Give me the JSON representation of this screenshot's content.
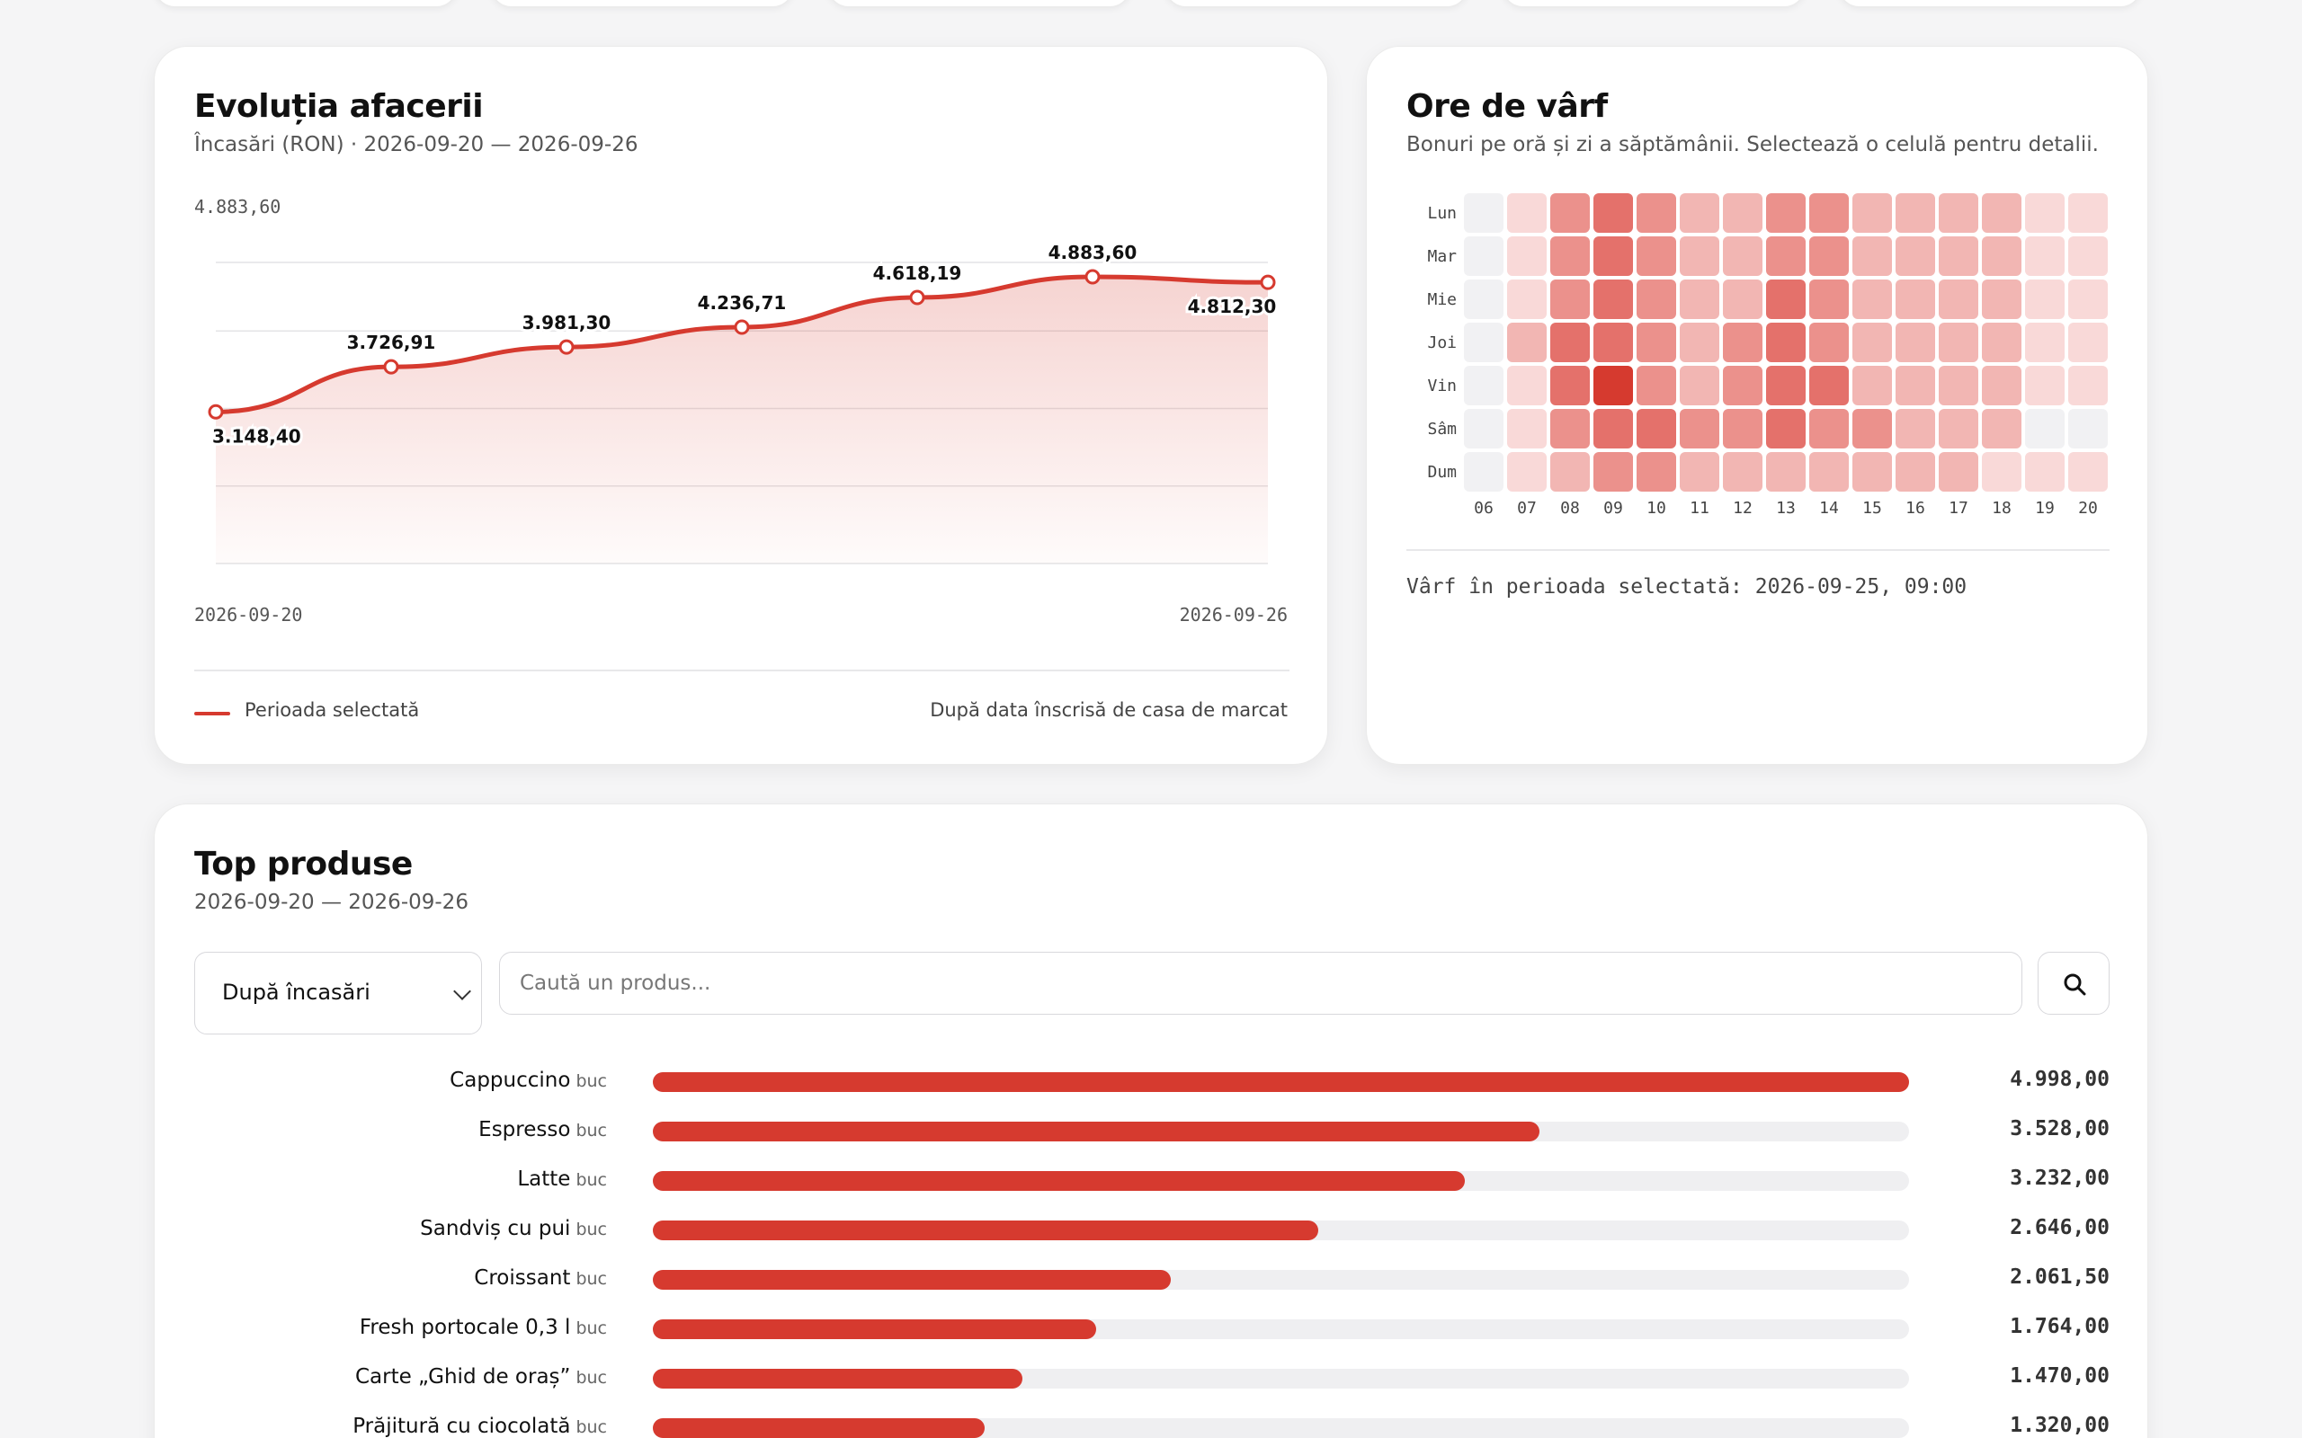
{
  "evolution": {
    "title": "Evoluția afacerii",
    "subtitle": "Încasări (RON) · 2026-09-20 — 2026-09-26",
    "legend_label": "Perioada selectată",
    "legend_note": "După data înscrisă de casa de marcat",
    "accent_color": "#d63a2f"
  },
  "chart_data": {
    "type": "area",
    "x": [
      "2026-09-20",
      "2026-09-21",
      "2026-09-22",
      "2026-09-23",
      "2026-09-24",
      "2026-09-25",
      "2026-09-26"
    ],
    "values": [
      3148.4,
      3726.91,
      3981.3,
      4236.71,
      4618.19,
      4883.6,
      4812.3
    ],
    "labels": [
      "3.148,40",
      "3.726,91",
      "3.981,30",
      "4.236,71",
      "4.618,19",
      "4.883,60",
      "4.812,30"
    ],
    "y_max_label": "4.883,60",
    "x_start_label": "2026-09-20",
    "x_end_label": "2026-09-26",
    "ylim": [
      0,
      4883.6
    ],
    "grid": true
  },
  "peak": {
    "title": "Ore de vârf",
    "subtitle": "Bonuri pe oră și zi a săptămânii. Selectează o celulă pentru detalii.",
    "days": [
      "Lun",
      "Mar",
      "Mie",
      "Joi",
      "Vin",
      "Sâm",
      "Dum"
    ],
    "hours": [
      "06",
      "07",
      "08",
      "09",
      "10",
      "11",
      "12",
      "13",
      "14",
      "15",
      "16",
      "17",
      "18",
      "19",
      "20"
    ],
    "intensity": [
      [
        0,
        1,
        3,
        4,
        3,
        2,
        2,
        3,
        3,
        2,
        2,
        2,
        2,
        1,
        1
      ],
      [
        0,
        1,
        3,
        4,
        3,
        2,
        2,
        3,
        3,
        2,
        2,
        2,
        2,
        1,
        1
      ],
      [
        0,
        1,
        3,
        4,
        3,
        2,
        2,
        4,
        3,
        2,
        2,
        2,
        2,
        1,
        1
      ],
      [
        0,
        2,
        4,
        4,
        3,
        2,
        3,
        4,
        3,
        2,
        2,
        2,
        2,
        1,
        1
      ],
      [
        0,
        1,
        4,
        5,
        3,
        2,
        3,
        4,
        4,
        2,
        2,
        2,
        2,
        1,
        1
      ],
      [
        0,
        1,
        3,
        4,
        4,
        3,
        3,
        4,
        3,
        3,
        2,
        2,
        2,
        0,
        0
      ],
      [
        0,
        1,
        2,
        3,
        3,
        2,
        2,
        2,
        2,
        2,
        2,
        2,
        1,
        1,
        1
      ]
    ],
    "peak_text": "Vârf în perioada selectată: 2026-09-25, 09:00"
  },
  "top": {
    "title": "Top produse",
    "subtitle": "2026-09-20 — 2026-09-26",
    "sort_value": "După încasări",
    "search_placeholder": "Caută un produs...",
    "max_value": 4998.0,
    "products": [
      {
        "name": "Cappuccino",
        "unit": "buc",
        "value": 4998.0,
        "label": "4.998,00"
      },
      {
        "name": "Espresso",
        "unit": "buc",
        "value": 3528.0,
        "label": "3.528,00"
      },
      {
        "name": "Latte",
        "unit": "buc",
        "value": 3232.0,
        "label": "3.232,00"
      },
      {
        "name": "Sandviș cu pui",
        "unit": "buc",
        "value": 2646.0,
        "label": "2.646,00"
      },
      {
        "name": "Croissant",
        "unit": "buc",
        "value": 2061.5,
        "label": "2.061,50"
      },
      {
        "name": "Fresh portocale 0,3 l",
        "unit": "buc",
        "value": 1764.0,
        "label": "1.764,00"
      },
      {
        "name": "Carte „Ghid de oraș”",
        "unit": "buc",
        "value": 1470.0,
        "label": "1.470,00"
      },
      {
        "name": "Prăjitură cu ciocolată",
        "unit": "buc",
        "value": 1320.0,
        "label": "1.320,00"
      }
    ]
  }
}
